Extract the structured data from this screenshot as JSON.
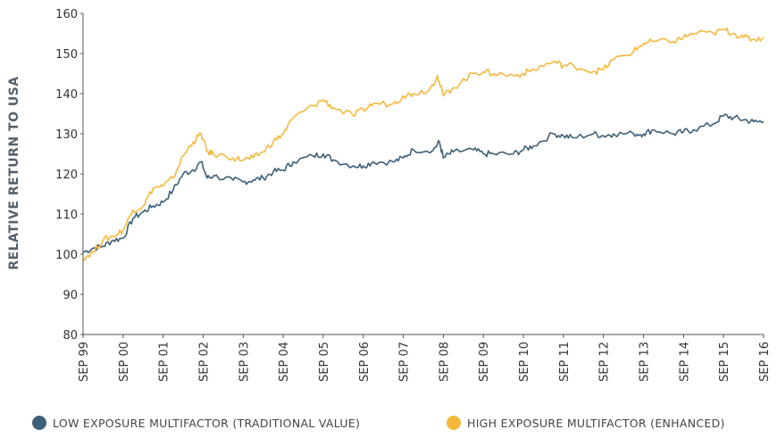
{
  "chart_data": {
    "type": "line",
    "title": "",
    "xlabel": "",
    "ylabel": "RELATIVE RETURN TO USA",
    "ylim": [
      80,
      160
    ],
    "yticks": [
      80,
      90,
      100,
      110,
      120,
      130,
      140,
      150,
      160
    ],
    "xlim": [
      1999.75,
      2016.75
    ],
    "xticks": [
      {
        "x": 1999.75,
        "label": "SEP 99"
      },
      {
        "x": 2000.75,
        "label": "SEP 00"
      },
      {
        "x": 2001.75,
        "label": "SEP 01"
      },
      {
        "x": 2002.75,
        "label": "SEP 02"
      },
      {
        "x": 2003.75,
        "label": "SEP 03"
      },
      {
        "x": 2004.75,
        "label": "SEP 04"
      },
      {
        "x": 2005.75,
        "label": "SEP 05"
      },
      {
        "x": 2006.75,
        "label": "SEP 06"
      },
      {
        "x": 2007.75,
        "label": "SEP 07"
      },
      {
        "x": 2008.75,
        "label": "SEP 08"
      },
      {
        "x": 2009.75,
        "label": "SEP 09"
      },
      {
        "x": 2010.75,
        "label": "SEP 10"
      },
      {
        "x": 2011.75,
        "label": "SEP 11"
      },
      {
        "x": 2012.75,
        "label": "SEP 12"
      },
      {
        "x": 2013.75,
        "label": "SEP 13"
      },
      {
        "x": 2014.75,
        "label": "SEP 14"
      },
      {
        "x": 2015.75,
        "label": "SEP 15"
      },
      {
        "x": 2016.75,
        "label": "SEP 16"
      }
    ],
    "grid": false,
    "legend_position": "bottom",
    "series": [
      {
        "name": "LOW EXPOSURE MULTIFACTOR (TRADITIONAL VALUE)",
        "color": "#3d6078",
        "points": [
          [
            1999.75,
            100.5
          ],
          [
            2000.0,
            101.5
          ],
          [
            2000.25,
            102
          ],
          [
            2000.5,
            103.5
          ],
          [
            2000.75,
            104
          ],
          [
            2001.0,
            109
          ],
          [
            2001.25,
            110.5
          ],
          [
            2001.5,
            112
          ],
          [
            2001.75,
            113
          ],
          [
            2002.0,
            116
          ],
          [
            2002.25,
            120
          ],
          [
            2002.5,
            121
          ],
          [
            2002.7,
            123
          ],
          [
            2002.85,
            119
          ],
          [
            2003.0,
            119.5
          ],
          [
            2003.5,
            118.5
          ],
          [
            2003.75,
            118
          ],
          [
            2004.0,
            118.5
          ],
          [
            2004.25,
            119
          ],
          [
            2004.5,
            120.5
          ],
          [
            2004.75,
            121
          ],
          [
            2005.0,
            123
          ],
          [
            2005.5,
            124.5
          ],
          [
            2005.75,
            125
          ],
          [
            2006.0,
            123.5
          ],
          [
            2006.5,
            122
          ],
          [
            2006.75,
            122
          ],
          [
            2007.0,
            123
          ],
          [
            2007.5,
            123
          ],
          [
            2007.75,
            124
          ],
          [
            2008.0,
            126
          ],
          [
            2008.5,
            126
          ],
          [
            2008.65,
            128
          ],
          [
            2008.75,
            124
          ],
          [
            2009.0,
            125.5
          ],
          [
            2009.5,
            126
          ],
          [
            2009.75,
            125
          ],
          [
            2010.0,
            125
          ],
          [
            2010.5,
            125
          ],
          [
            2010.75,
            126
          ],
          [
            2011.0,
            127
          ],
          [
            2011.5,
            130
          ],
          [
            2011.75,
            129.5
          ],
          [
            2012.0,
            129
          ],
          [
            2012.5,
            130
          ],
          [
            2012.75,
            129.5
          ],
          [
            2013.0,
            130
          ],
          [
            2013.5,
            130
          ],
          [
            2013.75,
            130
          ],
          [
            2014.0,
            131
          ],
          [
            2014.5,
            130
          ],
          [
            2014.75,
            130.5
          ],
          [
            2015.0,
            131
          ],
          [
            2015.5,
            132.5
          ],
          [
            2015.75,
            134.5
          ],
          [
            2016.0,
            134
          ],
          [
            2016.25,
            133.5
          ],
          [
            2016.5,
            133
          ],
          [
            2016.75,
            133
          ]
        ]
      },
      {
        "name": "HIGH EXPOSURE MULTIFACTOR (ENHANCED)",
        "color": "#f5b83d",
        "points": [
          [
            1999.75,
            99
          ],
          [
            2000.0,
            100.5
          ],
          [
            2000.25,
            103.5
          ],
          [
            2000.5,
            104.5
          ],
          [
            2000.75,
            106
          ],
          [
            2001.0,
            111
          ],
          [
            2001.25,
            112
          ],
          [
            2001.5,
            116.5
          ],
          [
            2001.75,
            117
          ],
          [
            2002.0,
            119
          ],
          [
            2002.25,
            124.5
          ],
          [
            2002.5,
            128
          ],
          [
            2002.7,
            130
          ],
          [
            2002.85,
            125.5
          ],
          [
            2003.0,
            125
          ],
          [
            2003.5,
            124
          ],
          [
            2003.75,
            123.5
          ],
          [
            2004.0,
            124
          ],
          [
            2004.25,
            125.5
          ],
          [
            2004.5,
            128
          ],
          [
            2004.75,
            130
          ],
          [
            2005.0,
            134
          ],
          [
            2005.5,
            137
          ],
          [
            2005.75,
            138.5
          ],
          [
            2006.0,
            136.5
          ],
          [
            2006.5,
            134.5
          ],
          [
            2006.75,
            136
          ],
          [
            2007.0,
            137.5
          ],
          [
            2007.5,
            137.5
          ],
          [
            2007.75,
            139.5
          ],
          [
            2008.0,
            140
          ],
          [
            2008.4,
            141
          ],
          [
            2008.6,
            144.5
          ],
          [
            2008.75,
            139.5
          ],
          [
            2009.0,
            141.5
          ],
          [
            2009.5,
            145
          ],
          [
            2009.75,
            145.5
          ],
          [
            2010.0,
            145
          ],
          [
            2010.5,
            144.5
          ],
          [
            2010.75,
            145
          ],
          [
            2011.0,
            146
          ],
          [
            2011.5,
            148
          ],
          [
            2011.75,
            147
          ],
          [
            2012.0,
            147
          ],
          [
            2012.5,
            145.5
          ],
          [
            2012.75,
            146
          ],
          [
            2013.0,
            148.5
          ],
          [
            2013.5,
            150.5
          ],
          [
            2013.75,
            152.5
          ],
          [
            2014.0,
            153
          ],
          [
            2014.5,
            153
          ],
          [
            2014.75,
            154
          ],
          [
            2015.0,
            155
          ],
          [
            2015.5,
            155
          ],
          [
            2015.75,
            156
          ],
          [
            2016.0,
            155
          ],
          [
            2016.25,
            154
          ],
          [
            2016.5,
            153.5
          ],
          [
            2016.75,
            154
          ]
        ]
      }
    ]
  },
  "legend": [
    {
      "label": "LOW EXPOSURE MULTIFACTOR (TRADITIONAL VALUE)",
      "color": "#3d6078"
    },
    {
      "label": "HIGH EXPOSURE MULTIFACTOR (ENHANCED)",
      "color": "#f5b83d"
    }
  ]
}
